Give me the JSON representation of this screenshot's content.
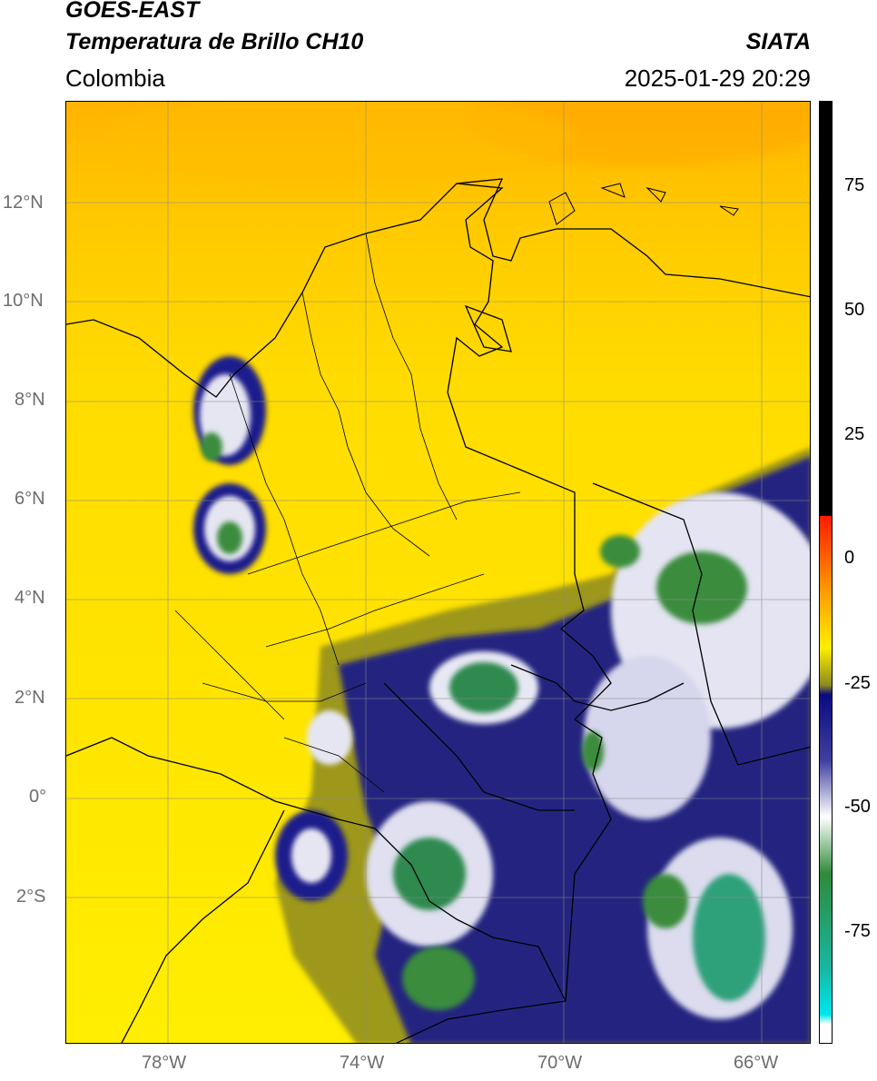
{
  "header": {
    "satellite": "GOES-EAST",
    "product": "Temperatura de Brillo CH10",
    "brand": "SIATA",
    "region": "Colombia",
    "timestamp": "2025-01-29 20:29"
  },
  "axes": {
    "lat_labels": [
      "12°N",
      "10°N",
      "8°N",
      "6°N",
      "4°N",
      "2°N",
      "0°",
      "2°S"
    ],
    "lon_labels": [
      "78°W",
      "74°W",
      "70°W",
      "66°W"
    ]
  },
  "colorbar": {
    "ticks": [
      "75",
      "50",
      "25",
      "0",
      "-25",
      "-50",
      "-75"
    ],
    "colors": {
      "black": "#000000",
      "red": "#ff1a00",
      "orange": "#ff9a00",
      "yellow": "#ffee00",
      "olive": "#8c8a1e",
      "navy": "#0a0a80",
      "white": "#ffffff",
      "green": "#2f8a3a",
      "teal": "#18b6a0",
      "cyan": "#00e6ee"
    }
  }
}
